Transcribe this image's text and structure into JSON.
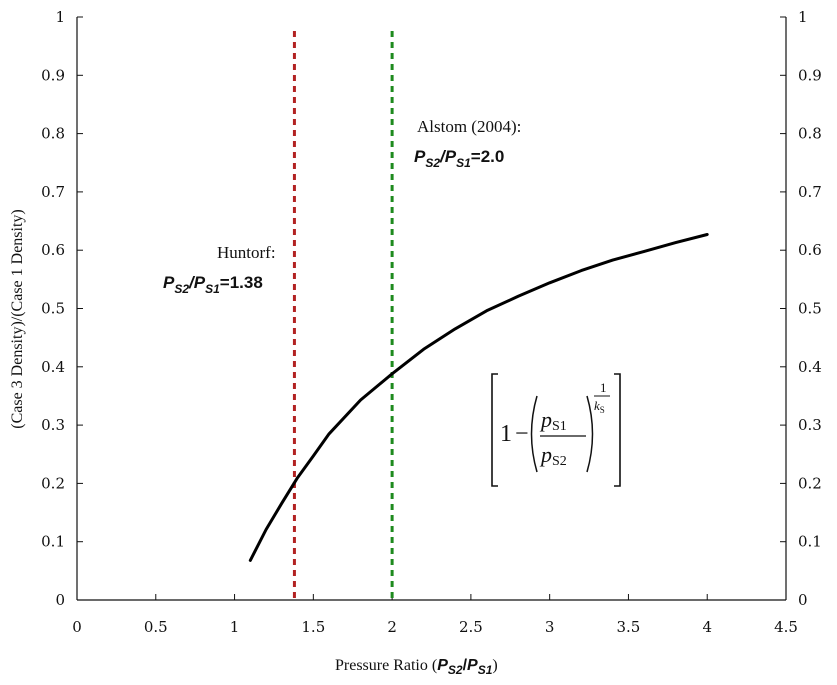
{
  "chart_data": {
    "type": "line",
    "title": "",
    "xlabel": "Pressure Ratio",
    "xlabel_math": {
      "p": "P",
      "s2": "S2",
      "slash": "/",
      "s1": "S1"
    },
    "ylabel": "(Case 3 Density)/(Case 1 Density)",
    "xlim": [
      0,
      4.5
    ],
    "ylim": [
      0,
      1
    ],
    "xticks": [
      "0",
      "0.5",
      "1",
      "1.5",
      "2",
      "2.5",
      "3",
      "3.5",
      "4",
      "4.5"
    ],
    "yticks": [
      "0",
      "0.1",
      "0.2",
      "0.3",
      "0.4",
      "0.5",
      "0.6",
      "0.7",
      "0.8",
      "0.9",
      "1"
    ],
    "grid": false,
    "series": [
      {
        "x": [
          1.1,
          1.2,
          1.3,
          1.4,
          1.5,
          1.6,
          1.8,
          2.0,
          2.2,
          2.4,
          2.6,
          2.8,
          3.0,
          3.2,
          3.4,
          3.6,
          3.8,
          4.0
        ],
        "y": [
          0.068,
          0.121,
          0.166,
          0.21,
          0.247,
          0.285,
          0.343,
          0.388,
          0.43,
          0.465,
          0.496,
          0.521,
          0.544,
          0.565,
          0.583,
          0.598,
          0.613,
          0.627
        ],
        "color": "#000000"
      }
    ],
    "vlines": [
      {
        "x": 1.38,
        "color": "#b22222",
        "style": "dashed"
      },
      {
        "x": 2.0,
        "color": "#1e8a1e",
        "style": "dashed"
      }
    ],
    "annotations": [
      {
        "title": "Huntorf:",
        "eq_lhs": "P",
        "eq_sub1": "S2",
        "eq_mid": "/P",
        "eq_sub2": "S1",
        "eq_rhs": "=1.38"
      },
      {
        "title": "Alstom (2004):",
        "eq_lhs": "P",
        "eq_sub1": "S2",
        "eq_mid": "/P",
        "eq_sub2": "S1",
        "eq_rhs": "=2.0"
      }
    ],
    "formula": {
      "one": "1",
      "minus": "−",
      "num_p": "p",
      "num_sub": "S1",
      "den_p": "p",
      "den_sub": "S2",
      "exp_num": "1",
      "exp_den": "k",
      "exp_den_sub": "S"
    }
  }
}
